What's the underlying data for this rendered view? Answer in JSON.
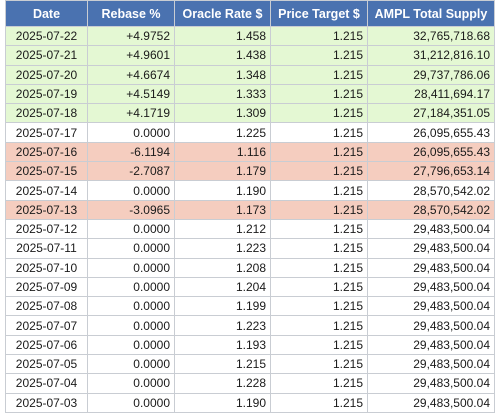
{
  "headers": [
    "Date",
    "Rebase %",
    "Oracle Rate $",
    "Price Target $",
    "AMPL Total Supply"
  ],
  "colors": {
    "header_bg": "#4a72b0",
    "positive_row": "#e4f8d3",
    "negative_row": "#f5cdbf",
    "neutral_row": "#ffffff"
  },
  "rows": [
    {
      "date": "2025-07-22",
      "rebase": "+4.9752",
      "oracle": "1.458",
      "target": "1.215",
      "supply": "32,765,718.68",
      "status": "pos"
    },
    {
      "date": "2025-07-21",
      "rebase": "+4.9601",
      "oracle": "1.438",
      "target": "1.215",
      "supply": "31,212,816.10",
      "status": "pos"
    },
    {
      "date": "2025-07-20",
      "rebase": "+4.6674",
      "oracle": "1.348",
      "target": "1.215",
      "supply": "29,737,786.06",
      "status": "pos"
    },
    {
      "date": "2025-07-19",
      "rebase": "+4.5149",
      "oracle": "1.333",
      "target": "1.215",
      "supply": "28,411,694.17",
      "status": "pos"
    },
    {
      "date": "2025-07-18",
      "rebase": "+4.1719",
      "oracle": "1.309",
      "target": "1.215",
      "supply": "27,184,351.05",
      "status": "pos"
    },
    {
      "date": "2025-07-17",
      "rebase": "0.0000",
      "oracle": "1.225",
      "target": "1.215",
      "supply": "26,095,655.43",
      "status": "zero"
    },
    {
      "date": "2025-07-16",
      "rebase": "-6.1194",
      "oracle": "1.116",
      "target": "1.215",
      "supply": "26,095,655.43",
      "status": "neg"
    },
    {
      "date": "2025-07-15",
      "rebase": "-2.7087",
      "oracle": "1.179",
      "target": "1.215",
      "supply": "27,796,653.14",
      "status": "neg"
    },
    {
      "date": "2025-07-14",
      "rebase": "0.0000",
      "oracle": "1.190",
      "target": "1.215",
      "supply": "28,570,542.02",
      "status": "zero"
    },
    {
      "date": "2025-07-13",
      "rebase": "-3.0965",
      "oracle": "1.173",
      "target": "1.215",
      "supply": "28,570,542.02",
      "status": "neg"
    },
    {
      "date": "2025-07-12",
      "rebase": "0.0000",
      "oracle": "1.212",
      "target": "1.215",
      "supply": "29,483,500.04",
      "status": "zero"
    },
    {
      "date": "2025-07-11",
      "rebase": "0.0000",
      "oracle": "1.223",
      "target": "1.215",
      "supply": "29,483,500.04",
      "status": "zero"
    },
    {
      "date": "2025-07-10",
      "rebase": "0.0000",
      "oracle": "1.208",
      "target": "1.215",
      "supply": "29,483,500.04",
      "status": "zero"
    },
    {
      "date": "2025-07-09",
      "rebase": "0.0000",
      "oracle": "1.204",
      "target": "1.215",
      "supply": "29,483,500.04",
      "status": "zero"
    },
    {
      "date": "2025-07-08",
      "rebase": "0.0000",
      "oracle": "1.199",
      "target": "1.215",
      "supply": "29,483,500.04",
      "status": "zero"
    },
    {
      "date": "2025-07-07",
      "rebase": "0.0000",
      "oracle": "1.223",
      "target": "1.215",
      "supply": "29,483,500.04",
      "status": "zero"
    },
    {
      "date": "2025-07-06",
      "rebase": "0.0000",
      "oracle": "1.193",
      "target": "1.215",
      "supply": "29,483,500.04",
      "status": "zero"
    },
    {
      "date": "2025-07-05",
      "rebase": "0.0000",
      "oracle": "1.215",
      "target": "1.215",
      "supply": "29,483,500.04",
      "status": "zero"
    },
    {
      "date": "2025-07-04",
      "rebase": "0.0000",
      "oracle": "1.228",
      "target": "1.215",
      "supply": "29,483,500.04",
      "status": "zero"
    },
    {
      "date": "2025-07-03",
      "rebase": "0.0000",
      "oracle": "1.190",
      "target": "1.215",
      "supply": "29,483,500.04",
      "status": "zero"
    }
  ]
}
